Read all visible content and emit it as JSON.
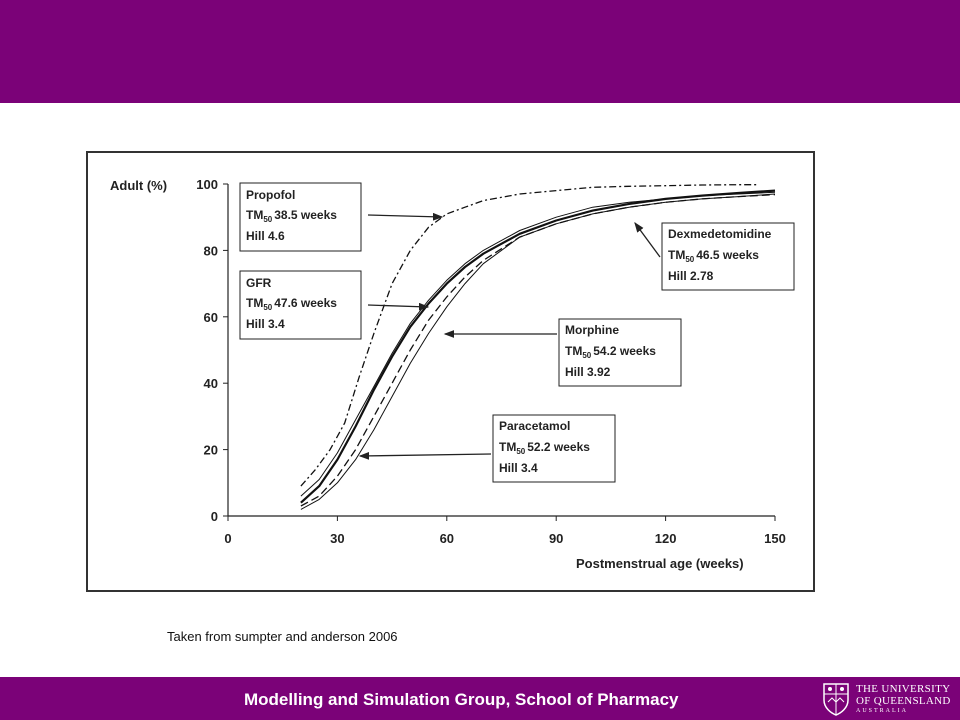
{
  "slide": {
    "caption": "Taken from sumpter and anderson 2006",
    "footer_title": "Modelling and Simulation Group, School of Pharmacy",
    "logo_line1": "THE UNIVERSITY",
    "logo_line2": "OF QUEENSLAND",
    "logo_line3": "AUSTRALIA",
    "band_color": "#7b0278"
  },
  "chart_data": {
    "type": "line",
    "title": "",
    "xlabel": "Postmenstrual age (weeks)",
    "ylabel": "Adult (%)",
    "xlim": [
      0,
      150
    ],
    "ylim": [
      0,
      100
    ],
    "x_ticks": [
      0,
      30,
      60,
      90,
      120,
      150
    ],
    "y_ticks": [
      0,
      20,
      40,
      60,
      80,
      100
    ],
    "grid": false,
    "series": [
      {
        "name": "Propofol",
        "style": "dash-dot",
        "tm50": 38.5,
        "hill": 4.6,
        "x": [
          20,
          24,
          28,
          32,
          36,
          40,
          45,
          50,
          55,
          60,
          65,
          70,
          80,
          90,
          100,
          110,
          120,
          130,
          140,
          145
        ],
        "y": [
          9,
          14,
          20,
          28,
          42,
          55,
          70,
          80,
          87,
          91,
          93,
          95,
          97,
          98,
          99,
          99.3,
          99.5,
          99.7,
          99.8,
          99.8
        ]
      },
      {
        "name": "GFR",
        "style": "solid-thin",
        "tm50": 47.6,
        "hill": 3.4,
        "x": [
          20,
          25,
          30,
          35,
          40,
          45,
          50,
          55,
          60,
          65,
          70,
          80,
          90,
          100,
          110,
          120,
          130,
          140,
          150
        ],
        "y": [
          6,
          11,
          19,
          29,
          39,
          49,
          58,
          65,
          71,
          76,
          80,
          86,
          90,
          93,
          94.5,
          95.5,
          96.5,
          97,
          97.5
        ]
      },
      {
        "name": "Dexmedetomidine",
        "style": "solid-thick",
        "tm50": 46.5,
        "hill": 2.78,
        "x": [
          20,
          25,
          30,
          35,
          40,
          45,
          50,
          55,
          60,
          65,
          70,
          80,
          90,
          100,
          110,
          120,
          130,
          140,
          150
        ],
        "y": [
          4,
          9,
          17,
          27,
          38,
          48,
          57,
          64,
          70,
          75,
          79,
          85,
          89,
          92,
          94,
          95.5,
          96.5,
          97.3,
          98
        ]
      },
      {
        "name": "Morphine",
        "style": "solid-thin",
        "tm50": 54.2,
        "hill": 3.92,
        "x": [
          20,
          25,
          30,
          35,
          40,
          45,
          50,
          55,
          60,
          65,
          70,
          80,
          90,
          100,
          110,
          120,
          130,
          140,
          150
        ],
        "y": [
          2,
          5,
          10,
          17,
          26,
          36,
          46,
          55,
          63,
          70,
          76,
          84,
          88,
          91,
          93,
          94.5,
          95.5,
          96.2,
          97
        ]
      },
      {
        "name": "Paracetamol",
        "style": "dashed",
        "tm50": 52.2,
        "hill": 3.4,
        "x": [
          20,
          25,
          30,
          35,
          40,
          45,
          50,
          55,
          60,
          65,
          70,
          80,
          90,
          100,
          110,
          120,
          130,
          140,
          150
        ],
        "y": [
          3,
          6,
          12,
          20,
          30,
          40,
          50,
          59,
          66,
          72,
          77,
          84,
          88,
          91,
          93,
          94.5,
          95.5,
          96.2,
          96.8
        ]
      }
    ],
    "annotations": [
      {
        "id": "propofol",
        "title": "Propofol",
        "tm_prefix": "TM",
        "tm_sub": "50",
        "tm_value": "38.5 weeks",
        "hill": "Hill 4.6"
      },
      {
        "id": "gfr",
        "title": "GFR",
        "tm_prefix": "TM",
        "tm_sub": "50",
        "tm_value": "47.6 weeks",
        "hill": "Hill 3.4"
      },
      {
        "id": "dexmedetomidine",
        "title": "Dexmedetomidine",
        "tm_prefix": "TM",
        "tm_sub": "50",
        "tm_value": "46.5 weeks",
        "hill": "Hill 2.78"
      },
      {
        "id": "morphine",
        "title": "Morphine",
        "tm_prefix": "TM",
        "tm_sub": "50",
        "tm_value": "54.2 weeks",
        "hill": "Hill 3.92"
      },
      {
        "id": "paracetamol",
        "title": "Paracetamol",
        "tm_prefix": "TM",
        "tm_sub": "50",
        "tm_value": "52.2 weeks",
        "hill": "Hill 3.4"
      }
    ]
  }
}
